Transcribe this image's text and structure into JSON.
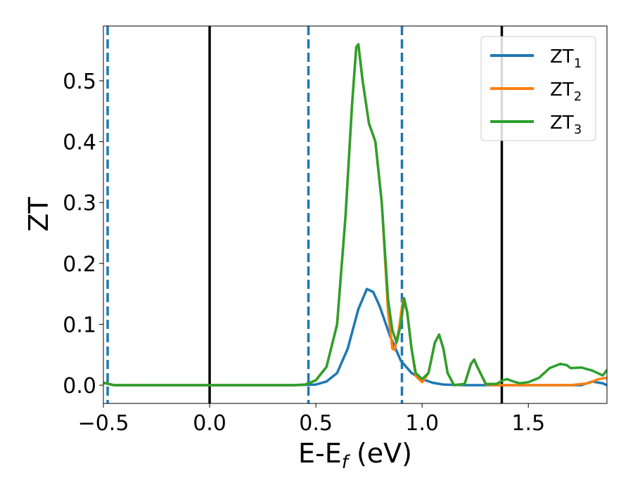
{
  "chart_data": {
    "type": "line",
    "title": "",
    "xlabel_main": "E-E",
    "xlabel_sub": "f",
    "xlabel_unit": " (eV)",
    "ylabel": "ZT",
    "xlim": [
      -0.5,
      1.87
    ],
    "ylim": [
      -0.03,
      0.59
    ],
    "xticks": [
      -0.5,
      0.0,
      0.5,
      1.0,
      1.5
    ],
    "xtick_labels": [
      "−0.5",
      "0.0",
      "0.5",
      "1.0",
      "1.5"
    ],
    "yticks": [
      0.0,
      0.1,
      0.2,
      0.3,
      0.4,
      0.5
    ],
    "ytick_labels": [
      "0.0",
      "0.1",
      "0.2",
      "0.3",
      "0.4",
      "0.5"
    ],
    "grid": false,
    "legend_position": "top-right",
    "vlines": [
      {
        "x": -0.48,
        "style": "dashed",
        "color": "#1f77b4"
      },
      {
        "x": 0.0,
        "style": "solid",
        "color": "#000000"
      },
      {
        "x": 0.465,
        "style": "dashed",
        "color": "#1f77b4"
      },
      {
        "x": 0.905,
        "style": "dashed",
        "color": "#1f77b4"
      },
      {
        "x": 1.375,
        "style": "solid",
        "color": "#000000"
      }
    ],
    "series": [
      {
        "name": "ZT",
        "sub": "1",
        "color": "#1f77b4",
        "points": [
          [
            -0.5,
            0.004
          ],
          [
            -0.45,
            0.0
          ],
          [
            0.0,
            0.0
          ],
          [
            0.4,
            0.0
          ],
          [
            0.5,
            0.001
          ],
          [
            0.55,
            0.006
          ],
          [
            0.6,
            0.02
          ],
          [
            0.65,
            0.06
          ],
          [
            0.7,
            0.125
          ],
          [
            0.74,
            0.158
          ],
          [
            0.77,
            0.153
          ],
          [
            0.8,
            0.13
          ],
          [
            0.85,
            0.08
          ],
          [
            0.9,
            0.04
          ],
          [
            0.95,
            0.02
          ],
          [
            1.0,
            0.01
          ],
          [
            1.05,
            0.004
          ],
          [
            1.1,
            0.001
          ],
          [
            1.2,
            0.0
          ],
          [
            1.5,
            0.0
          ],
          [
            1.75,
            0.0
          ],
          [
            1.8,
            0.006
          ],
          [
            1.85,
            0.003
          ],
          [
            1.87,
            0.0
          ]
        ]
      },
      {
        "name": "ZT",
        "sub": "2",
        "color": "#ff7f0e",
        "points": [
          [
            -0.5,
            0.004
          ],
          [
            -0.45,
            0.0
          ],
          [
            0.0,
            0.0
          ],
          [
            0.4,
            0.0
          ],
          [
            0.45,
            0.001
          ],
          [
            0.5,
            0.008
          ],
          [
            0.55,
            0.03
          ],
          [
            0.6,
            0.1
          ],
          [
            0.64,
            0.28
          ],
          [
            0.67,
            0.46
          ],
          [
            0.69,
            0.555
          ],
          [
            0.7,
            0.56
          ],
          [
            0.72,
            0.5
          ],
          [
            0.75,
            0.43
          ],
          [
            0.78,
            0.4
          ],
          [
            0.81,
            0.3
          ],
          [
            0.84,
            0.12
          ],
          [
            0.86,
            0.06
          ],
          [
            0.87,
            0.058
          ],
          [
            0.89,
            0.09
          ],
          [
            0.91,
            0.14
          ],
          [
            0.93,
            0.12
          ],
          [
            0.95,
            0.06
          ],
          [
            0.97,
            0.015
          ],
          [
            1.0,
            0.005
          ],
          [
            1.03,
            0.02
          ],
          [
            1.06,
            0.07
          ],
          [
            1.08,
            0.083
          ],
          [
            1.1,
            0.06
          ],
          [
            1.12,
            0.02
          ],
          [
            1.15,
            0.0
          ],
          [
            1.2,
            0.002
          ],
          [
            1.23,
            0.035
          ],
          [
            1.245,
            0.042
          ],
          [
            1.26,
            0.03
          ],
          [
            1.3,
            0.001
          ],
          [
            1.35,
            0.0
          ],
          [
            1.5,
            0.0
          ],
          [
            1.6,
            0.0
          ],
          [
            1.7,
            0.0
          ],
          [
            1.78,
            0.003
          ],
          [
            1.83,
            0.01
          ],
          [
            1.87,
            0.012
          ]
        ]
      },
      {
        "name": "ZT",
        "sub": "3",
        "color": "#2ca02c",
        "points": [
          [
            -0.5,
            0.004
          ],
          [
            -0.45,
            0.0
          ],
          [
            0.0,
            0.0
          ],
          [
            0.4,
            0.0
          ],
          [
            0.45,
            0.001
          ],
          [
            0.5,
            0.008
          ],
          [
            0.55,
            0.03
          ],
          [
            0.6,
            0.1
          ],
          [
            0.64,
            0.28
          ],
          [
            0.67,
            0.46
          ],
          [
            0.69,
            0.555
          ],
          [
            0.7,
            0.56
          ],
          [
            0.72,
            0.5
          ],
          [
            0.75,
            0.43
          ],
          [
            0.78,
            0.4
          ],
          [
            0.81,
            0.3
          ],
          [
            0.84,
            0.14
          ],
          [
            0.86,
            0.09
          ],
          [
            0.88,
            0.07
          ],
          [
            0.9,
            0.1
          ],
          [
            0.915,
            0.143
          ],
          [
            0.93,
            0.12
          ],
          [
            0.95,
            0.06
          ],
          [
            0.97,
            0.02
          ],
          [
            1.0,
            0.01
          ],
          [
            1.03,
            0.02
          ],
          [
            1.06,
            0.07
          ],
          [
            1.08,
            0.083
          ],
          [
            1.1,
            0.06
          ],
          [
            1.12,
            0.02
          ],
          [
            1.15,
            0.0
          ],
          [
            1.2,
            0.002
          ],
          [
            1.23,
            0.035
          ],
          [
            1.245,
            0.042
          ],
          [
            1.26,
            0.03
          ],
          [
            1.3,
            0.002
          ],
          [
            1.35,
            0.002
          ],
          [
            1.38,
            0.008
          ],
          [
            1.4,
            0.01
          ],
          [
            1.43,
            0.006
          ],
          [
            1.46,
            0.003
          ],
          [
            1.5,
            0.005
          ],
          [
            1.55,
            0.012
          ],
          [
            1.6,
            0.028
          ],
          [
            1.65,
            0.035
          ],
          [
            1.68,
            0.033
          ],
          [
            1.7,
            0.028
          ],
          [
            1.75,
            0.029
          ],
          [
            1.8,
            0.024
          ],
          [
            1.85,
            0.016
          ],
          [
            1.87,
            0.025
          ]
        ]
      }
    ]
  }
}
